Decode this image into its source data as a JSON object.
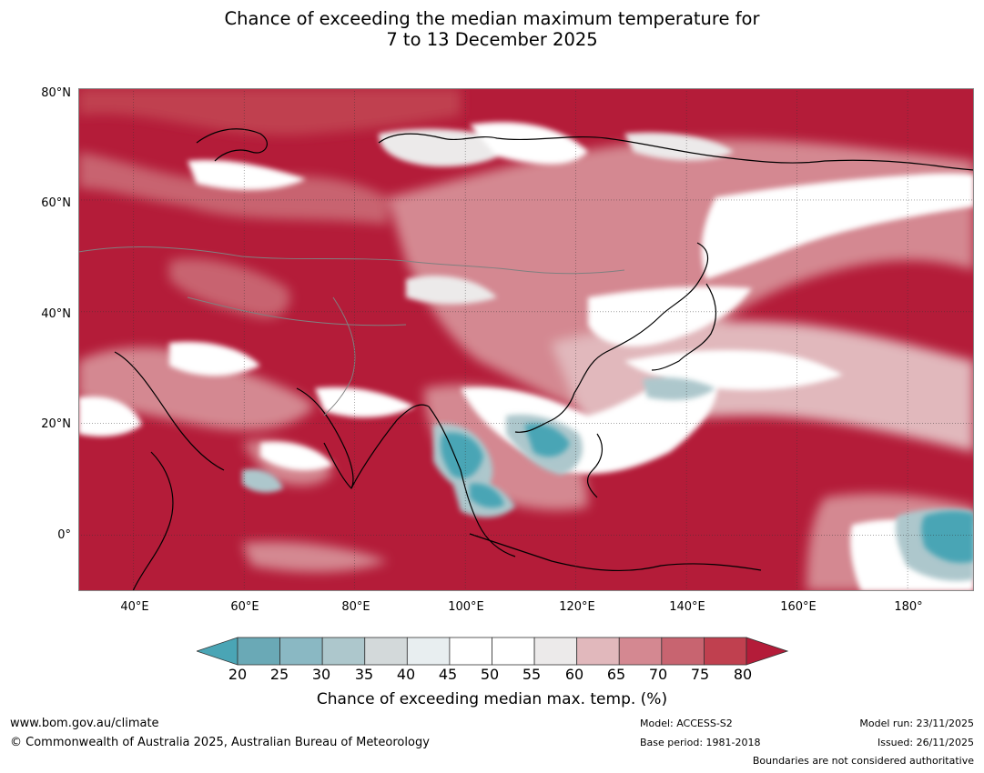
{
  "title": {
    "line1": "Chance of exceeding the median maximum temperature for",
    "line2": "7 to 13 December 2025"
  },
  "map": {
    "lat_labels": [
      "80°N",
      "60°N",
      "40°N",
      "20°N",
      "0°"
    ],
    "lon_labels": [
      "40°E",
      "60°E",
      "80°E",
      "100°E",
      "120°E",
      "140°E",
      "160°E",
      "180°"
    ],
    "lat_range": [
      -10,
      80
    ],
    "lon_range": [
      30,
      192
    ],
    "colors": {
      "very_high": "#b41c39",
      "high": "#c0404f",
      "mid_high": "#c86470",
      "warm": "#d48891",
      "warm_light": "#e1b8bc",
      "neutral_warm": "#eceaea",
      "neutral": "#ffffff",
      "cool_light": "#e8eef0",
      "cool": "#adc7cc",
      "cold": "#4aa5b5"
    }
  },
  "colorbar": {
    "ticks": [
      "20",
      "25",
      "30",
      "35",
      "40",
      "45",
      "50",
      "55",
      "60",
      "65",
      "70",
      "75",
      "80"
    ],
    "segment_colors": [
      "#6aa9b6",
      "#8ab8c3",
      "#adc7cc",
      "#d3d9da",
      "#e8eef0",
      "#ffffff",
      "#ffffff",
      "#eceaea",
      "#e1b8bc",
      "#d48891",
      "#c86470",
      "#c0404f"
    ],
    "low_extend_color": "#4aa5b5",
    "high_extend_color": "#b41c39",
    "label": "Chance of exceeding median max. temp. (%)"
  },
  "footer": {
    "url": "www.bom.gov.au/climate",
    "copyright": "© Commonwealth of Australia 2025, Australian Bureau of Meteorology",
    "model": "Model: ACCESS-S2",
    "base_period": "Base period: 1981-2018",
    "model_run": "Model run: 23/11/2025",
    "issued": "Issued: 26/11/2025",
    "disclaimer": "Boundaries are not considered authoritative"
  }
}
